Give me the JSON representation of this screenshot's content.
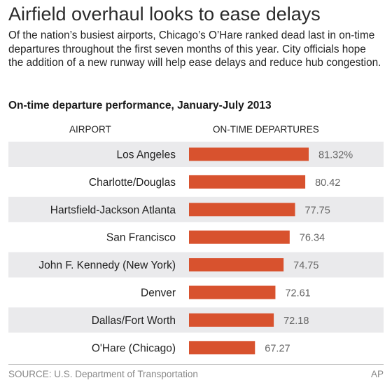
{
  "headline": "Airfield overhaul looks to ease delays",
  "intro": "Of the nation’s busiest airports, Chicago’s O’Hare ranked dead last in on-time departures throughout the first seven months of this year. City officials hope the addition of a new runway will help ease delays and reduce hub congestion.",
  "footer": {
    "source": "SOURCE: U.S. Department of Transportation",
    "credit": "AP"
  },
  "colors": {
    "bar": "#d8522e",
    "row_band": "#eaeaec",
    "value_text": "#666666"
  },
  "chart_data": {
    "type": "bar",
    "orientation": "horizontal",
    "title": "On-time departure performance, January-July 2013",
    "category_header": "AIRPORT",
    "value_header": "ON-TIME DEPARTURES",
    "categories": [
      "Los Angeles",
      "Charlotte/Douglas",
      "Hartsfield-Jackson Atlanta",
      "San Francisco",
      "John F. Kennedy (New York)",
      "Denver",
      "Dallas/Fort Worth",
      "O'Hare (Chicago)"
    ],
    "values": [
      81.32,
      80.42,
      77.75,
      76.34,
      74.75,
      72.61,
      72.18,
      67.27
    ],
    "value_labels": [
      "81.32%",
      "80.42",
      "77.75",
      "76.34",
      "74.75",
      "72.61",
      "72.18",
      "67.27"
    ],
    "unit": "%",
    "grid": false,
    "legend": "none"
  }
}
